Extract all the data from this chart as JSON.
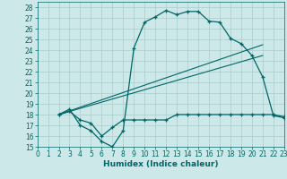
{
  "bg_color": "#cce8e8",
  "line_color": "#006666",
  "grid_color": "#aacccc",
  "xlabel": "Humidex (Indice chaleur)",
  "ylim": [
    15,
    28.5
  ],
  "xlim": [
    0,
    23
  ],
  "yticks": [
    15,
    16,
    17,
    18,
    19,
    20,
    21,
    22,
    23,
    24,
    25,
    26,
    27,
    28
  ],
  "xticks": [
    0,
    1,
    2,
    3,
    4,
    5,
    6,
    7,
    8,
    9,
    10,
    11,
    12,
    13,
    14,
    15,
    16,
    17,
    18,
    19,
    20,
    21,
    22,
    23
  ],
  "line1_x": [
    2,
    3,
    4,
    5,
    6,
    7,
    8,
    9,
    10,
    11,
    12,
    13,
    14,
    15,
    16,
    17,
    18,
    19,
    20,
    21,
    22,
    23
  ],
  "line1_y": [
    18,
    18.5,
    17,
    16.5,
    15.5,
    15,
    16.5,
    24.2,
    26.6,
    27.1,
    27.7,
    27.3,
    27.6,
    27.6,
    26.7,
    26.6,
    25.1,
    24.6,
    23.5,
    21.5,
    17.9,
    17.7
  ],
  "line2_x": [
    2,
    3,
    4,
    5,
    6,
    7,
    8,
    9,
    10,
    11,
    12,
    13,
    14,
    15,
    16,
    17,
    18,
    19,
    20,
    21,
    22,
    23
  ],
  "line2_y": [
    18,
    18.3,
    17.5,
    17.2,
    16.0,
    16.8,
    17.5,
    17.5,
    17.5,
    17.5,
    17.5,
    18.0,
    18.0,
    18.0,
    18.0,
    18.0,
    18.0,
    18.0,
    18.0,
    18.0,
    18.0,
    17.8
  ],
  "line3_x": [
    2,
    21
  ],
  "line3_y": [
    18,
    24.5
  ],
  "line4_x": [
    2,
    21
  ],
  "line4_y": [
    18,
    23.5
  ]
}
